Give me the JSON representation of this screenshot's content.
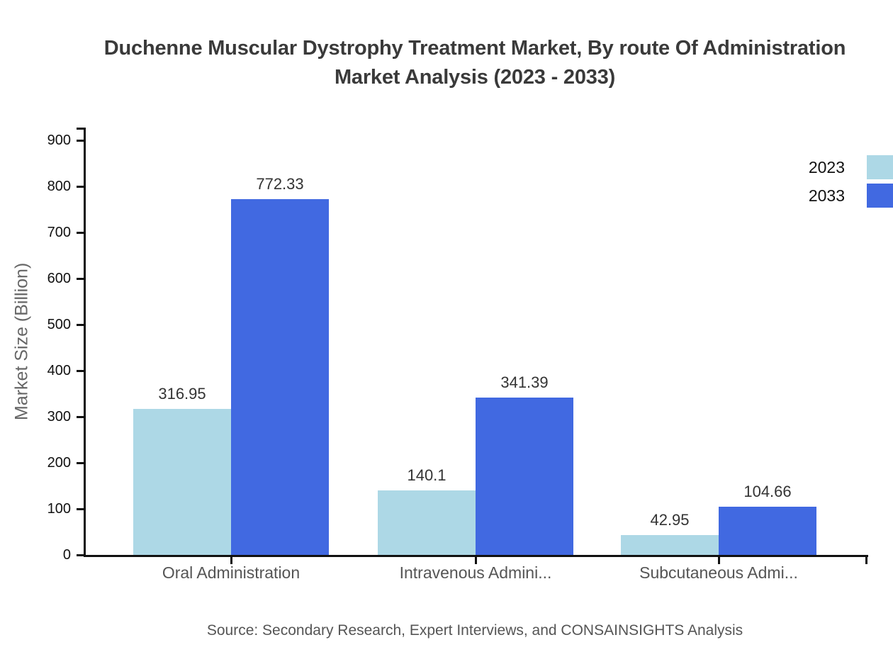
{
  "title": {
    "line1": "Duchenne Muscular Dystrophy Treatment Market, By route Of Administration",
    "line2": "Market Analysis (2023 - 2033)"
  },
  "source": "Source: Secondary Research, Expert Interviews, and CONSAINSIGHTS Analysis",
  "colors": {
    "series_2023": "#ADD8E6",
    "series_2033": "#4169E1",
    "axis": "#111111",
    "title_text": "#3a3a3a",
    "value_label_text": "#333333",
    "category_text": "#555555",
    "source_text": "#555555"
  },
  "chart_data": {
    "type": "bar",
    "title": "Duchenne Muscular Dystrophy Treatment Market, By route Of Administration Market Analysis (2023 - 2033)",
    "categories": [
      "Oral Administration",
      "Intravenous Admini...",
      "Subcutaneous Admi..."
    ],
    "series": [
      {
        "name": "2023",
        "color": "#ADD8E6",
        "values": [
          316.95,
          140.1,
          42.95
        ]
      },
      {
        "name": "2033",
        "color": "#4169E1",
        "values": [
          772.33,
          341.39,
          104.66
        ]
      }
    ],
    "value_labels": [
      "316.95",
      "772.33",
      "140.1",
      "341.39",
      "42.95",
      "104.66"
    ],
    "xlabel": "",
    "ylabel": "Market Size (Billion)",
    "ylim": [
      0,
      900
    ],
    "yticks": [
      0,
      100,
      200,
      300,
      400,
      500,
      600,
      700,
      800,
      900
    ],
    "grid": false,
    "legend_position": "top-right"
  }
}
